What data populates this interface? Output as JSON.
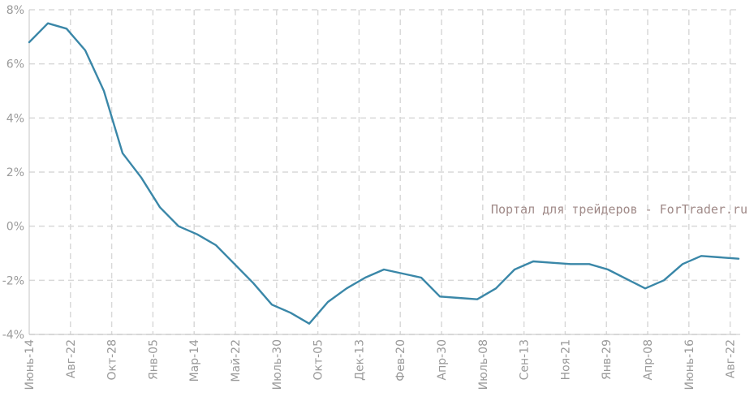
{
  "chart_data": {
    "type": "line",
    "title": "",
    "xlabel": "",
    "ylabel": "",
    "ylim": [
      -4,
      8
    ],
    "yticks": [
      "-4%",
      "-2%",
      "0%",
      "2%",
      "4%",
      "6%",
      "8%"
    ],
    "grid": true,
    "x_tick_labels": [
      "Июнь-14",
      "Авг-22",
      "Окт-28",
      "Янв-05",
      "Мар-14",
      "Май-22",
      "Июль-30",
      "Окт-05",
      "Дек-13",
      "Фев-20",
      "Апр-30",
      "Июль-08",
      "Сен-13",
      "Ноя-21",
      "Янв-29",
      "Апр-08",
      "Июнь-16",
      "Авг-22"
    ],
    "series": [
      {
        "color": "#3a87a8",
        "points": [
          [
            "Июнь-14",
            6.8
          ],
          [
            "",
            7.5
          ],
          [
            "",
            7.3
          ],
          [
            "",
            6.5
          ],
          [
            "",
            5.0
          ],
          [
            "",
            2.7
          ],
          [
            "",
            1.8
          ],
          [
            "",
            0.7
          ],
          [
            "Мар-14",
            0.0
          ],
          [
            "",
            -0.3
          ],
          [
            "",
            -0.7
          ],
          [
            "",
            -1.4
          ],
          [
            "",
            -2.1
          ],
          [
            "",
            -2.9
          ],
          [
            "",
            -3.2
          ],
          [
            "Окт-05",
            -3.6
          ],
          [
            "",
            -2.8
          ],
          [
            "",
            -2.3
          ],
          [
            "",
            -1.9
          ],
          [
            "",
            -1.6
          ],
          [
            "",
            -1.75
          ],
          [
            "",
            -1.9
          ],
          [
            "Апр-30",
            -2.6
          ],
          [
            "",
            -2.65
          ],
          [
            "",
            -2.7
          ],
          [
            "",
            -2.3
          ],
          [
            "Сен-13",
            -1.6
          ],
          [
            "",
            -1.3
          ],
          [
            "",
            -1.35
          ],
          [
            "",
            -1.4
          ],
          [
            "",
            -1.4
          ],
          [
            "",
            -1.6
          ],
          [
            "",
            -1.95
          ],
          [
            "Апр-08",
            -2.3
          ],
          [
            "",
            -2.0
          ],
          [
            "",
            -1.4
          ],
          [
            "",
            -1.1
          ],
          [
            "",
            -1.15
          ],
          [
            "Авг-22",
            -1.2
          ]
        ]
      }
    ]
  },
  "watermark": "Портал для трейдеров - ForTrader.ru"
}
